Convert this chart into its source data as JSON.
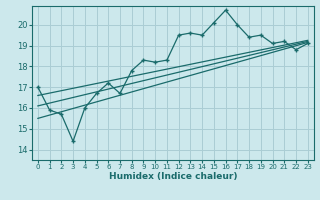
{
  "xlabel": "Humidex (Indice chaleur)",
  "ylabel": "",
  "bg_color": "#cce8ec",
  "line_color": "#1a6b6b",
  "grid_color": "#aacdd4",
  "xlim": [
    -0.5,
    23.5
  ],
  "ylim": [
    13.5,
    20.9
  ],
  "yticks": [
    14,
    15,
    16,
    17,
    18,
    19,
    20
  ],
  "xticks": [
    0,
    1,
    2,
    3,
    4,
    5,
    6,
    7,
    8,
    9,
    10,
    11,
    12,
    13,
    14,
    15,
    16,
    17,
    18,
    19,
    20,
    21,
    22,
    23
  ],
  "main_line_x": [
    0,
    1,
    2,
    3,
    4,
    5,
    6,
    7,
    8,
    9,
    10,
    11,
    12,
    13,
    14,
    15,
    16,
    17,
    18,
    19,
    20,
    21,
    22,
    23
  ],
  "main_line_y": [
    17.0,
    15.9,
    15.7,
    14.4,
    16.0,
    16.7,
    17.2,
    16.7,
    17.8,
    18.3,
    18.2,
    18.3,
    19.5,
    19.6,
    19.5,
    20.1,
    20.7,
    20.0,
    19.4,
    19.5,
    19.1,
    19.2,
    18.8,
    19.1
  ],
  "trend1_x": [
    0,
    23
  ],
  "trend1_y": [
    16.1,
    19.2
  ],
  "trend2_x": [
    0,
    23
  ],
  "trend2_y": [
    15.5,
    19.15
  ],
  "trend3_x": [
    0,
    23
  ],
  "trend3_y": [
    16.6,
    19.25
  ]
}
